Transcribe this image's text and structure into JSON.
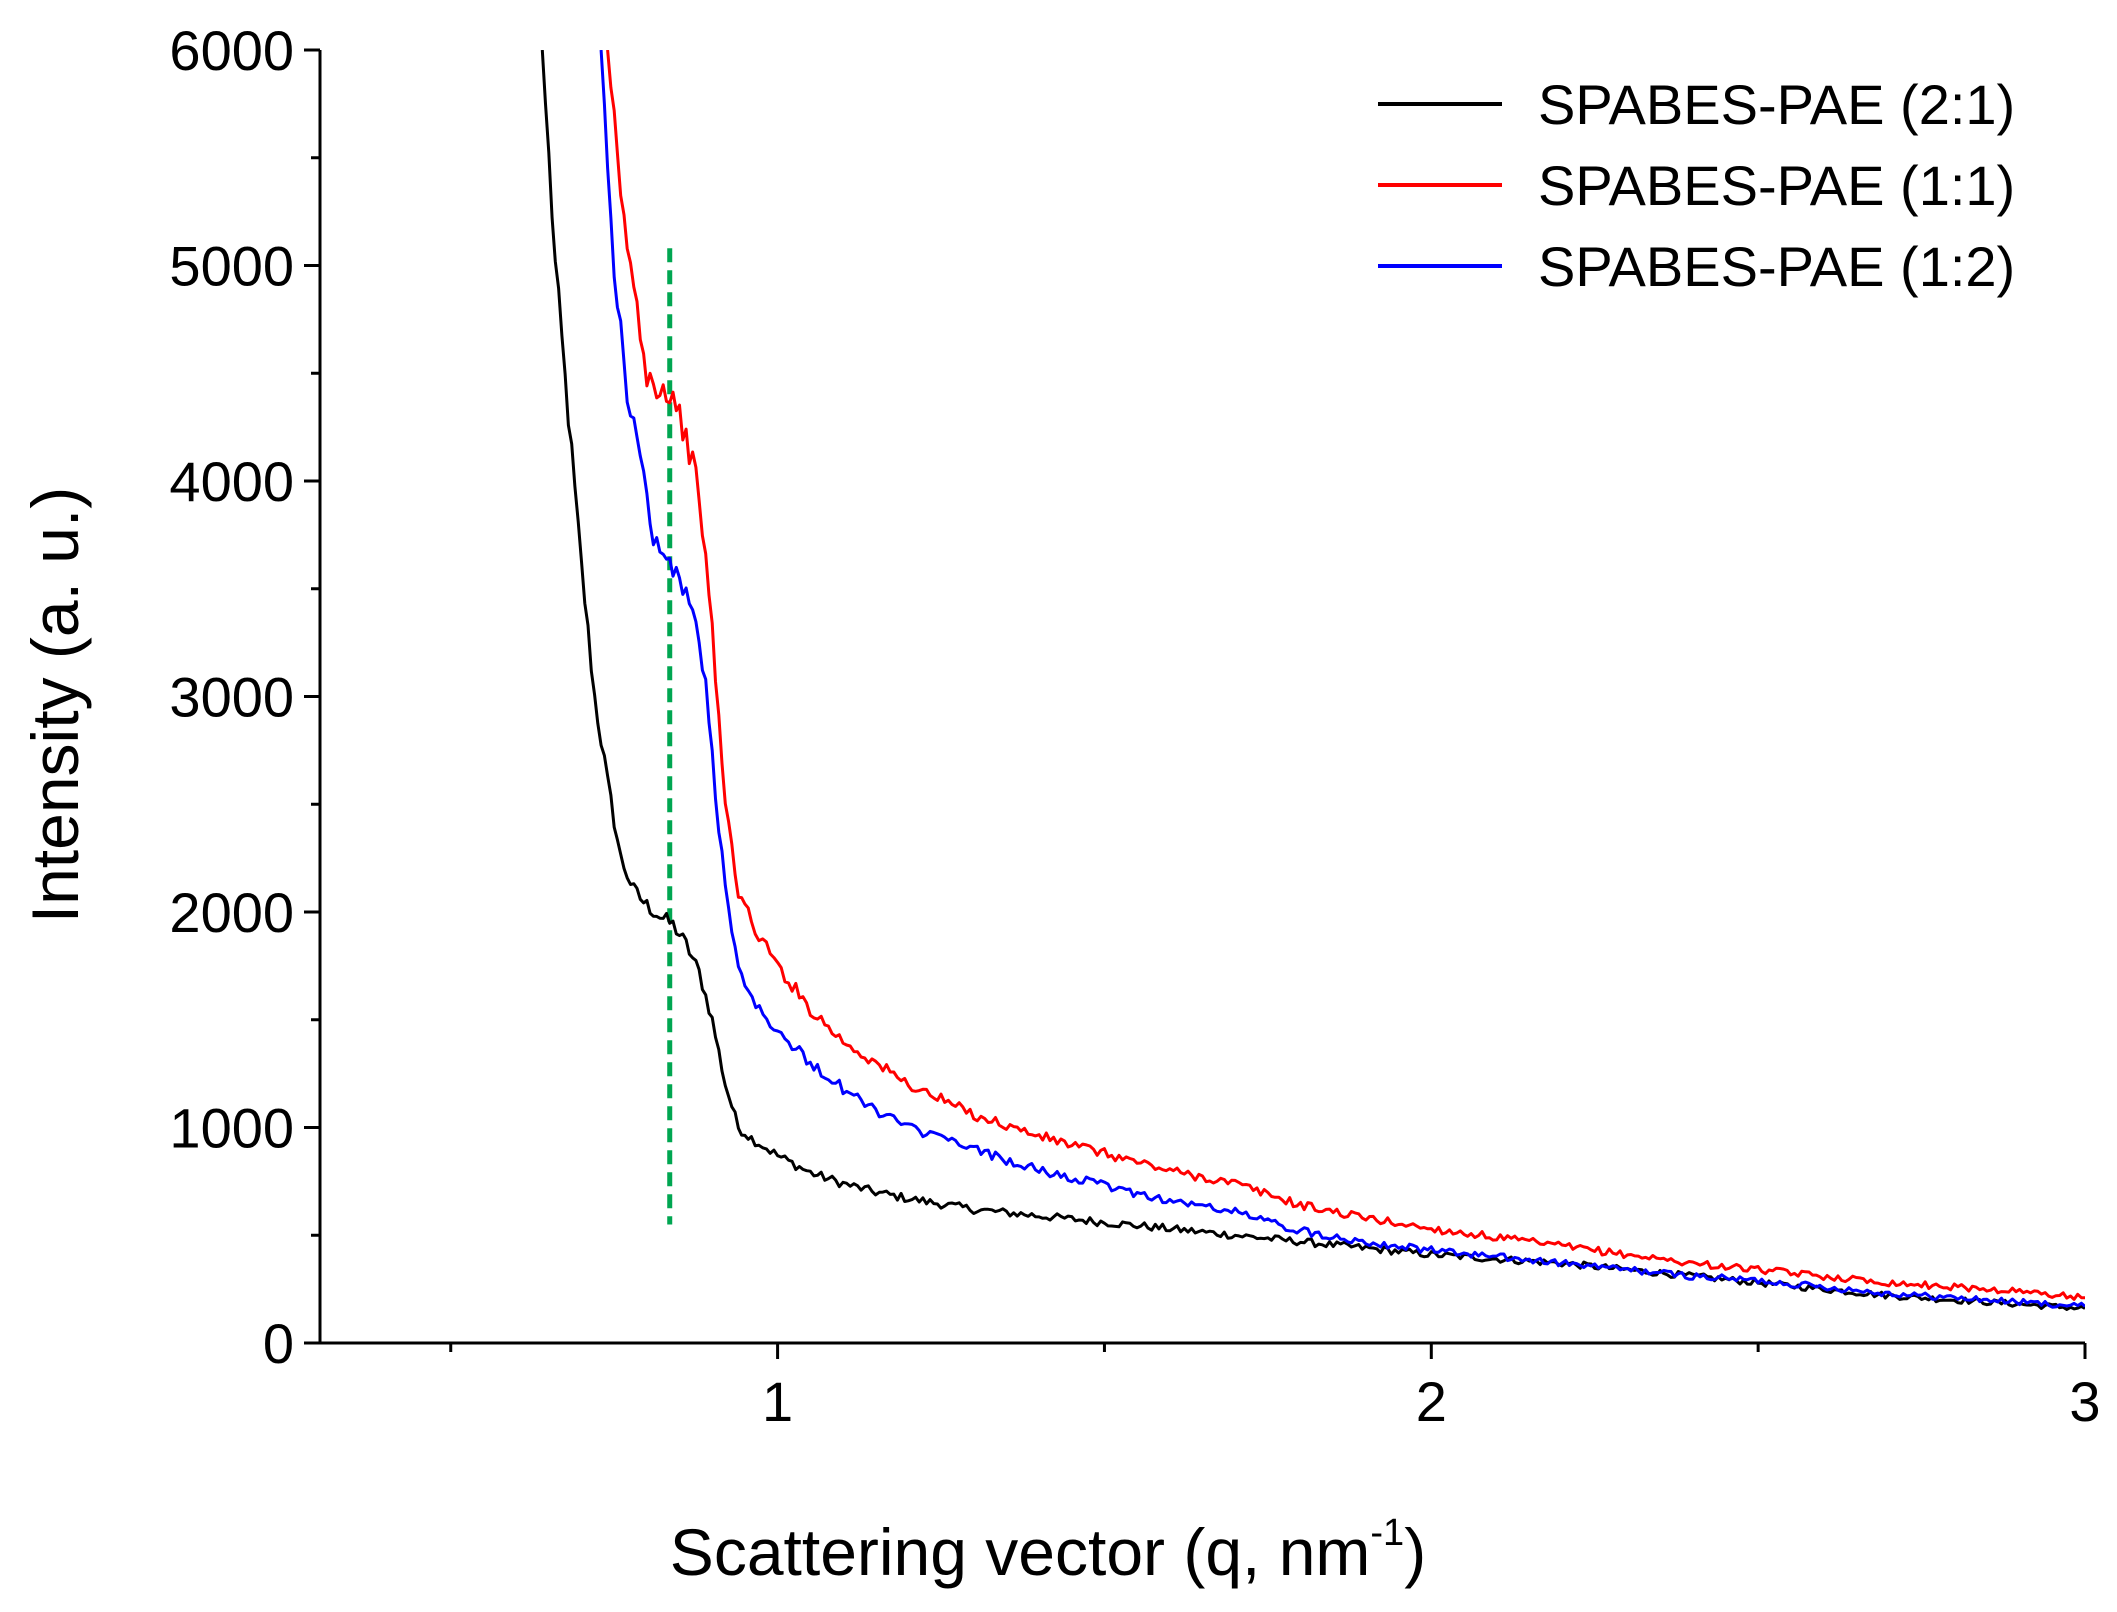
{
  "chart_data": {
    "type": "line",
    "title": "",
    "xlabel_main": "Scattering vector (q, nm",
    "xlabel_sup": "-1",
    "xlabel_close": ")",
    "ylabel": "Intensity (a. u.)",
    "xlim": [
      0.3,
      3.0
    ],
    "ylim": [
      0,
      6000
    ],
    "x_ticks": [
      1,
      2,
      3
    ],
    "x_tick_labels": [
      "1",
      "2",
      "3"
    ],
    "x_minor_ticks": [
      0.5,
      1.5,
      2.5
    ],
    "y_ticks": [
      0,
      1000,
      2000,
      3000,
      4000,
      5000,
      6000
    ],
    "y_tick_labels": [
      "0",
      "1000",
      "2000",
      "3000",
      "4000",
      "5000",
      "6000"
    ],
    "y_minor_ticks": [
      500,
      1500,
      2500,
      3500,
      4500,
      5500
    ],
    "grid": false,
    "legend_position": "top-right",
    "series": [
      {
        "name": "SPABES-PAE (2:1)",
        "color": "#000000",
        "x": [
          0.64,
          0.66,
          0.68,
          0.7,
          0.72,
          0.74,
          0.76,
          0.78,
          0.8,
          0.82,
          0.84,
          0.86,
          0.88,
          0.9,
          0.92,
          0.94,
          0.96,
          1.0,
          1.05,
          1.1,
          1.15,
          1.2,
          1.3,
          1.4,
          1.5,
          1.6,
          1.7,
          1.8,
          1.9,
          2.0,
          2.1,
          2.2,
          2.3,
          2.4,
          2.5,
          2.6,
          2.7,
          2.8,
          2.9,
          3.0
        ],
        "y": [
          6000,
          5000,
          4300,
          3600,
          3000,
          2600,
          2250,
          2100,
          2030,
          1980,
          1940,
          1850,
          1720,
          1500,
          1200,
          1000,
          950,
          870,
          790,
          740,
          700,
          670,
          620,
          590,
          560,
          530,
          500,
          470,
          440,
          410,
          390,
          370,
          340,
          310,
          280,
          250,
          220,
          200,
          180,
          160
        ]
      },
      {
        "name": "SPABES-PAE (1:1)",
        "color": "#ff0000",
        "x": [
          0.74,
          0.76,
          0.78,
          0.8,
          0.82,
          0.84,
          0.86,
          0.88,
          0.9,
          0.92,
          0.94,
          0.96,
          1.0,
          1.05,
          1.1,
          1.15,
          1.2,
          1.3,
          1.4,
          1.5,
          1.6,
          1.7,
          1.8,
          1.9,
          2.0,
          2.1,
          2.2,
          2.3,
          2.4,
          2.5,
          2.6,
          2.7,
          2.8,
          2.9,
          3.0
        ],
        "y": [
          6000,
          5300,
          4900,
          4500,
          4430,
          4400,
          4200,
          3950,
          3300,
          2500,
          2100,
          1950,
          1750,
          1550,
          1400,
          1300,
          1200,
          1060,
          960,
          880,
          800,
          740,
          640,
          580,
          530,
          490,
          450,
          410,
          370,
          340,
          310,
          280,
          260,
          240,
          210
        ]
      },
      {
        "name": "SPABES-PAE (1:2)",
        "color": "#0000ff",
        "x": [
          0.73,
          0.75,
          0.77,
          0.79,
          0.81,
          0.83,
          0.85,
          0.87,
          0.89,
          0.91,
          0.93,
          0.95,
          1.0,
          1.05,
          1.1,
          1.15,
          1.2,
          1.3,
          1.4,
          1.5,
          1.6,
          1.7,
          1.8,
          1.9,
          2.0,
          2.1,
          2.2,
          2.3,
          2.4,
          2.5,
          2.6,
          2.7,
          2.8,
          2.9,
          3.0
        ],
        "y": [
          6000,
          5000,
          4400,
          4100,
          3750,
          3620,
          3550,
          3400,
          3050,
          2400,
          1900,
          1650,
          1450,
          1300,
          1180,
          1080,
          1000,
          900,
          800,
          730,
          660,
          610,
          520,
          470,
          430,
          400,
          370,
          340,
          310,
          290,
          260,
          230,
          210,
          190,
          170
        ]
      }
    ],
    "annotations": [
      {
        "type": "vline",
        "x": 0.835,
        "y_from": 550,
        "y_to": 5080,
        "color": "#00a651",
        "style": "dashed"
      }
    ]
  }
}
